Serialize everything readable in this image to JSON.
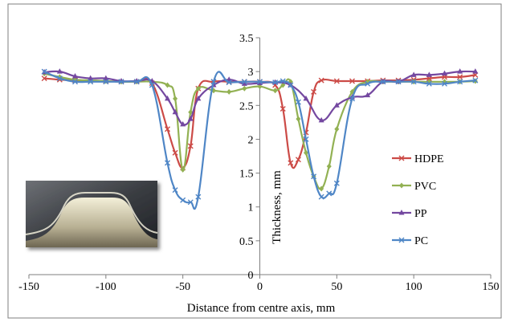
{
  "chart_data": {
    "type": "line",
    "title": "",
    "xlabel": "Distance from centre axis, mm",
    "ylabel": "Thickness, mm",
    "xlim": [
      -150,
      150
    ],
    "ylim": [
      0,
      3.5
    ],
    "x_ticks": [
      "-150",
      "-100",
      "-50",
      "0",
      "50",
      "100",
      "150"
    ],
    "y_ticks": [
      "0",
      "0.5",
      "1",
      "1.5",
      "2",
      "2.5",
      "3",
      "3.5"
    ],
    "grid": false,
    "legend_position": "right",
    "inset_image": "photo of a formed plastic sheet cross-section",
    "series": [
      {
        "name": "HDPE",
        "color": "#cc4b47",
        "marker": "x",
        "x": [
          -140,
          -130,
          -120,
          -110,
          -100,
          -90,
          -80,
          -70,
          -60,
          -55,
          -50,
          -45,
          -40,
          -30,
          -20,
          -10,
          0,
          10,
          15,
          20,
          25,
          30,
          35,
          40,
          50,
          60,
          70,
          80,
          90,
          100,
          110,
          120,
          130,
          140
        ],
        "y": [
          2.9,
          2.88,
          2.87,
          2.87,
          2.86,
          2.85,
          2.85,
          2.83,
          2.15,
          1.8,
          1.58,
          1.9,
          2.75,
          2.85,
          2.85,
          2.85,
          2.85,
          2.8,
          2.45,
          1.65,
          1.7,
          2.1,
          2.7,
          2.87,
          2.86,
          2.86,
          2.86,
          2.87,
          2.87,
          2.88,
          2.9,
          2.92,
          2.92,
          2.95
        ]
      },
      {
        "name": "PVC",
        "color": "#92b153",
        "marker": "diamond",
        "x": [
          -140,
          -130,
          -120,
          -110,
          -100,
          -90,
          -80,
          -70,
          -60,
          -55,
          -50,
          -45,
          -40,
          -30,
          -20,
          -10,
          0,
          10,
          15,
          20,
          25,
          30,
          35,
          40,
          45,
          50,
          60,
          70,
          80,
          90,
          100,
          110,
          120,
          130,
          140
        ],
        "y": [
          2.97,
          2.92,
          2.88,
          2.87,
          2.86,
          2.85,
          2.85,
          2.85,
          2.8,
          2.6,
          1.55,
          2.4,
          2.75,
          2.72,
          2.7,
          2.75,
          2.78,
          2.72,
          2.8,
          2.85,
          2.3,
          1.8,
          1.45,
          1.27,
          1.6,
          2.15,
          2.7,
          2.85,
          2.85,
          2.85,
          2.85,
          2.85,
          2.85,
          2.85,
          2.86
        ]
      },
      {
        "name": "PP",
        "color": "#7448a0",
        "marker": "triangle",
        "x": [
          -140,
          -130,
          -120,
          -110,
          -100,
          -90,
          -80,
          -70,
          -60,
          -55,
          -50,
          -45,
          -40,
          -30,
          -20,
          -10,
          0,
          10,
          20,
          30,
          40,
          50,
          60,
          70,
          80,
          90,
          100,
          110,
          120,
          130,
          140
        ],
        "y": [
          2.99,
          3.0,
          2.93,
          2.9,
          2.9,
          2.86,
          2.86,
          2.86,
          2.6,
          2.4,
          2.22,
          2.3,
          2.6,
          2.8,
          2.88,
          2.82,
          2.83,
          2.84,
          2.8,
          2.6,
          2.28,
          2.5,
          2.62,
          2.65,
          2.85,
          2.85,
          2.95,
          2.95,
          2.97,
          3.0,
          3.0
        ]
      },
      {
        "name": "PC",
        "color": "#4f86c6",
        "marker": "x",
        "x": [
          -140,
          -130,
          -120,
          -110,
          -100,
          -90,
          -80,
          -70,
          -60,
          -55,
          -50,
          -45,
          -40,
          -30,
          -20,
          -10,
          0,
          10,
          15,
          20,
          25,
          30,
          35,
          40,
          45,
          50,
          60,
          70,
          80,
          90,
          100,
          110,
          120,
          130,
          140
        ],
        "y": [
          3.0,
          2.9,
          2.85,
          2.85,
          2.85,
          2.85,
          2.85,
          2.8,
          1.65,
          1.25,
          1.1,
          1.07,
          1.15,
          2.85,
          2.84,
          2.85,
          2.85,
          2.84,
          2.86,
          2.8,
          2.55,
          2.0,
          1.45,
          1.15,
          1.2,
          1.35,
          2.6,
          2.82,
          2.85,
          2.85,
          2.85,
          2.82,
          2.82,
          2.85,
          2.87
        ]
      }
    ]
  }
}
